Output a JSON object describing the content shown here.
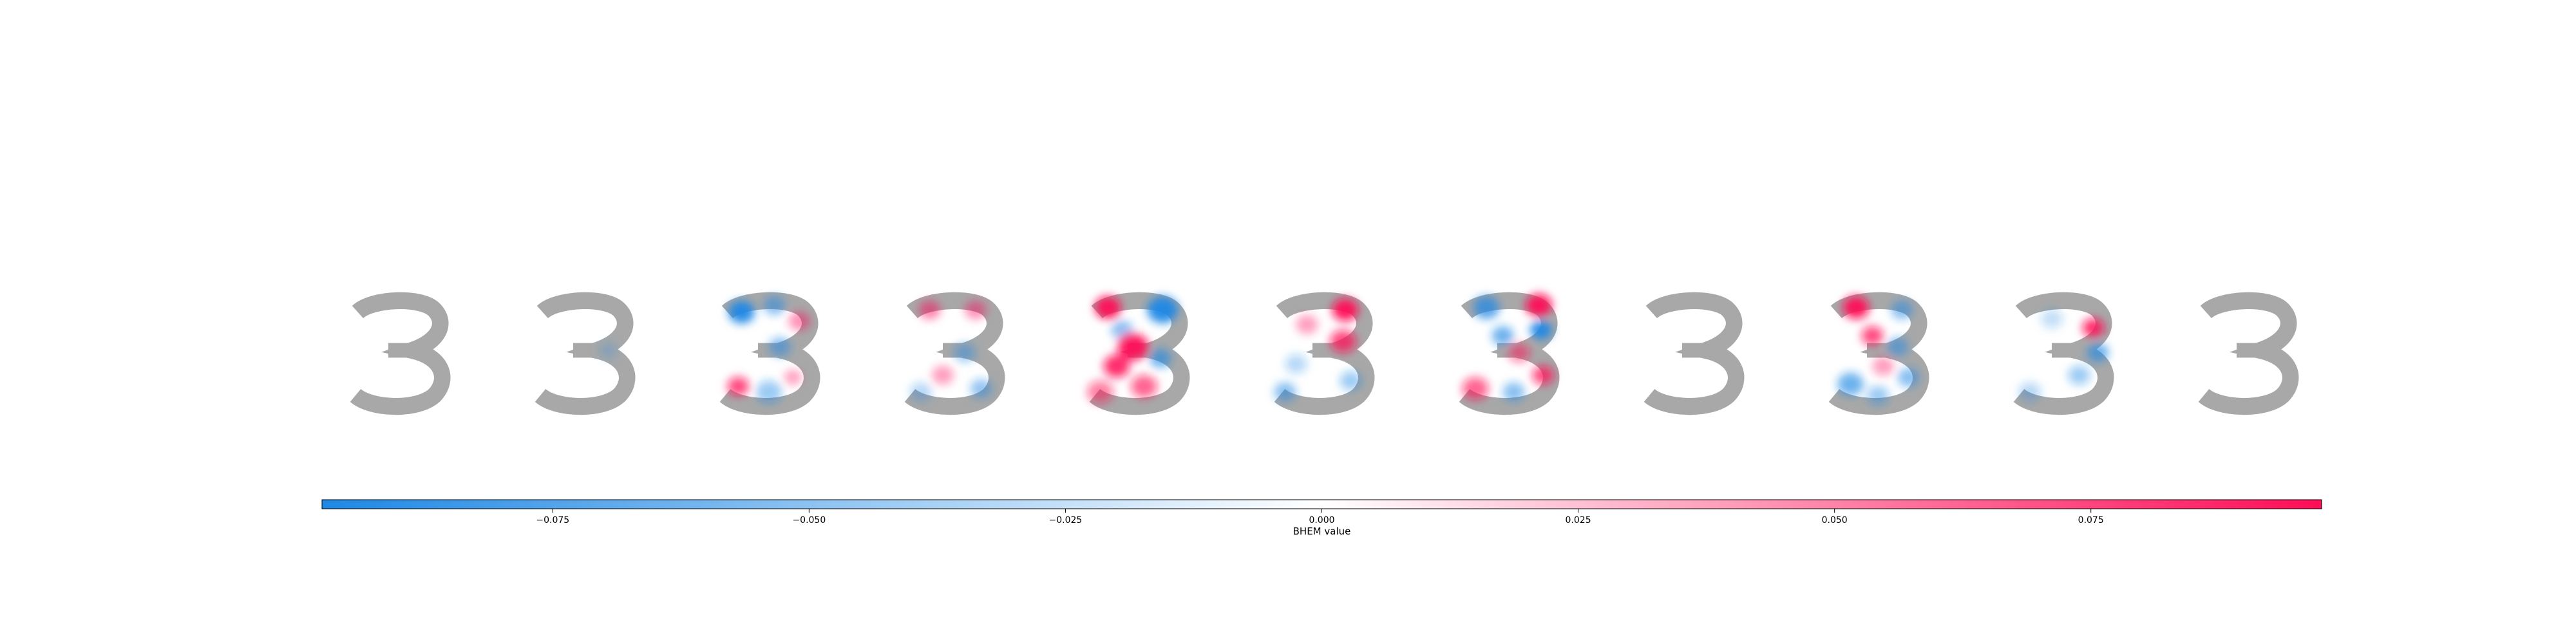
{
  "chart_data": {
    "type": "heatmap",
    "description_free": true,
    "panel_count": 11,
    "digit": "3",
    "base_color": "#a8a8a8",
    "negative_color": "#1e88e5",
    "positive_color": "#ff0d57",
    "colorbar": {
      "label": "BHEM value",
      "vmin": -0.0975,
      "vmax": 0.0975,
      "ticks": [
        -0.075,
        -0.05,
        -0.025,
        0.0,
        0.025,
        0.05,
        0.075
      ],
      "tick_labels": [
        "−0.075",
        "−0.050",
        "−0.025",
        "0.000",
        "0.025",
        "0.050",
        "0.075"
      ]
    },
    "panels": [
      {
        "index": 0,
        "blobs": []
      },
      {
        "index": 1,
        "blobs": [
          {
            "u": 0.72,
            "v": 0.48,
            "r": 0.08,
            "value": -0.025
          }
        ]
      },
      {
        "index": 2,
        "blobs": [
          {
            "u": 0.25,
            "v": 0.14,
            "r": 0.12,
            "value": -0.09
          },
          {
            "u": 0.55,
            "v": 0.08,
            "r": 0.1,
            "value": -0.05
          },
          {
            "u": 0.78,
            "v": 0.22,
            "r": 0.1,
            "value": 0.04
          },
          {
            "u": 0.6,
            "v": 0.45,
            "r": 0.1,
            "value": -0.05
          },
          {
            "u": 0.22,
            "v": 0.8,
            "r": 0.1,
            "value": 0.07
          },
          {
            "u": 0.5,
            "v": 0.85,
            "r": 0.12,
            "value": -0.04
          },
          {
            "u": 0.72,
            "v": 0.72,
            "r": 0.08,
            "value": 0.035
          }
        ]
      },
      {
        "index": 3,
        "blobs": [
          {
            "u": 0.28,
            "v": 0.12,
            "r": 0.1,
            "value": 0.045
          },
          {
            "u": 0.7,
            "v": 0.12,
            "r": 0.1,
            "value": 0.04
          },
          {
            "u": 0.6,
            "v": 0.5,
            "r": 0.1,
            "value": -0.04
          },
          {
            "u": 0.4,
            "v": 0.7,
            "r": 0.1,
            "value": 0.035
          },
          {
            "u": 0.75,
            "v": 0.82,
            "r": 0.1,
            "value": -0.045
          },
          {
            "u": 0.2,
            "v": 0.85,
            "r": 0.1,
            "value": -0.03
          }
        ]
      },
      {
        "index": 4,
        "blobs": [
          {
            "u": 0.22,
            "v": 0.1,
            "r": 0.12,
            "value": 0.09
          },
          {
            "u": 0.72,
            "v": 0.12,
            "r": 0.14,
            "value": -0.09
          },
          {
            "u": 0.35,
            "v": 0.3,
            "r": 0.1,
            "value": -0.05
          },
          {
            "u": 0.45,
            "v": 0.45,
            "r": 0.14,
            "value": 0.095
          },
          {
            "u": 0.7,
            "v": 0.55,
            "r": 0.1,
            "value": -0.06
          },
          {
            "u": 0.3,
            "v": 0.62,
            "r": 0.12,
            "value": 0.08
          },
          {
            "u": 0.55,
            "v": 0.8,
            "r": 0.12,
            "value": 0.06
          },
          {
            "u": 0.15,
            "v": 0.85,
            "r": 0.12,
            "value": 0.05
          }
        ]
      },
      {
        "index": 5,
        "blobs": [
          {
            "u": 0.7,
            "v": 0.12,
            "r": 0.12,
            "value": 0.09
          },
          {
            "u": 0.68,
            "v": 0.4,
            "r": 0.12,
            "value": 0.07
          },
          {
            "u": 0.35,
            "v": 0.25,
            "r": 0.1,
            "value": 0.035
          },
          {
            "u": 0.25,
            "v": 0.6,
            "r": 0.1,
            "value": -0.03
          },
          {
            "u": 0.15,
            "v": 0.85,
            "r": 0.1,
            "value": -0.05
          },
          {
            "u": 0.75,
            "v": 0.75,
            "r": 0.1,
            "value": -0.04
          }
        ]
      },
      {
        "index": 6,
        "blobs": [
          {
            "u": 0.3,
            "v": 0.1,
            "r": 0.12,
            "value": -0.07
          },
          {
            "u": 0.78,
            "v": 0.08,
            "r": 0.12,
            "value": 0.095
          },
          {
            "u": 0.45,
            "v": 0.35,
            "r": 0.1,
            "value": -0.06
          },
          {
            "u": 0.8,
            "v": 0.3,
            "r": 0.1,
            "value": -0.09
          },
          {
            "u": 0.6,
            "v": 0.5,
            "r": 0.1,
            "value": 0.05
          },
          {
            "u": 0.2,
            "v": 0.82,
            "r": 0.12,
            "value": 0.06
          },
          {
            "u": 0.55,
            "v": 0.85,
            "r": 0.1,
            "value": -0.05
          },
          {
            "u": 0.82,
            "v": 0.7,
            "r": 0.1,
            "value": 0.07
          }
        ]
      },
      {
        "index": 7,
        "blobs": []
      },
      {
        "index": 8,
        "blobs": [
          {
            "u": 0.3,
            "v": 0.1,
            "r": 0.12,
            "value": 0.09
          },
          {
            "u": 0.72,
            "v": 0.12,
            "r": 0.1,
            "value": -0.05
          },
          {
            "u": 0.45,
            "v": 0.35,
            "r": 0.1,
            "value": 0.07
          },
          {
            "u": 0.68,
            "v": 0.45,
            "r": 0.1,
            "value": -0.05
          },
          {
            "u": 0.25,
            "v": 0.78,
            "r": 0.12,
            "value": -0.06
          },
          {
            "u": 0.5,
            "v": 0.88,
            "r": 0.1,
            "value": -0.04
          },
          {
            "u": 0.78,
            "v": 0.72,
            "r": 0.1,
            "value": -0.05
          },
          {
            "u": 0.55,
            "v": 0.62,
            "r": 0.1,
            "value": 0.035
          }
        ]
      },
      {
        "index": 9,
        "blobs": [
          {
            "u": 0.78,
            "v": 0.28,
            "r": 0.1,
            "value": 0.08
          },
          {
            "u": 0.82,
            "v": 0.5,
            "r": 0.1,
            "value": -0.06
          },
          {
            "u": 0.65,
            "v": 0.7,
            "r": 0.1,
            "value": -0.04
          },
          {
            "u": 0.4,
            "v": 0.2,
            "r": 0.1,
            "value": -0.025
          },
          {
            "u": 0.2,
            "v": 0.85,
            "r": 0.1,
            "value": -0.03
          }
        ]
      },
      {
        "index": 10,
        "blobs": []
      }
    ]
  }
}
